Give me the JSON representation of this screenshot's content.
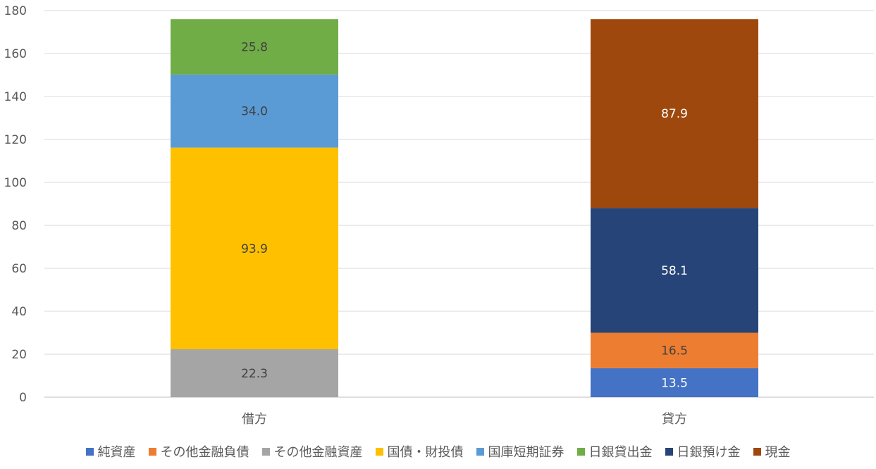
{
  "chart_data": {
    "type": "bar",
    "stacked": true,
    "categories": [
      "借方",
      "貸方"
    ],
    "ylim": [
      0,
      180
    ],
    "yticks": [
      0,
      20,
      40,
      60,
      80,
      100,
      120,
      140,
      160,
      180
    ],
    "grid": true,
    "legend_position": "bottom",
    "series": [
      {
        "name": "純資産",
        "color": "#4472C4",
        "values": [
          null,
          13.5
        ],
        "labels": [
          "",
          "13.5"
        ],
        "label_color": "#ffffff"
      },
      {
        "name": "その他金融負債",
        "color": "#ED7D31",
        "values": [
          null,
          16.5
        ],
        "labels": [
          "",
          "16.5"
        ],
        "label_color": "#404040"
      },
      {
        "name": "その他金融資産",
        "color": "#A5A5A5",
        "values": [
          22.3,
          null
        ],
        "labels": [
          "22.3",
          ""
        ],
        "label_color": "#404040"
      },
      {
        "name": "国債・財投債",
        "color": "#FFC000",
        "values": [
          93.9,
          null
        ],
        "labels": [
          "93.9",
          ""
        ],
        "label_color": "#404040"
      },
      {
        "name": "国庫短期証券",
        "color": "#5B9BD5",
        "values": [
          34.0,
          null
        ],
        "labels": [
          "34.0",
          ""
        ],
        "label_color": "#404040"
      },
      {
        "name": "日銀貸出金",
        "color": "#70AD47",
        "values": [
          25.8,
          null
        ],
        "labels": [
          "25.8",
          ""
        ],
        "label_color": "#404040"
      },
      {
        "name": "日銀預け金",
        "color": "#264478",
        "values": [
          null,
          58.1
        ],
        "labels": [
          "",
          "58.1"
        ],
        "label_color": "#ffffff"
      },
      {
        "name": "現金",
        "color": "#9E480E",
        "values": [
          null,
          87.9
        ],
        "labels": [
          "",
          "87.9"
        ],
        "label_color": "#ffffff"
      }
    ]
  }
}
